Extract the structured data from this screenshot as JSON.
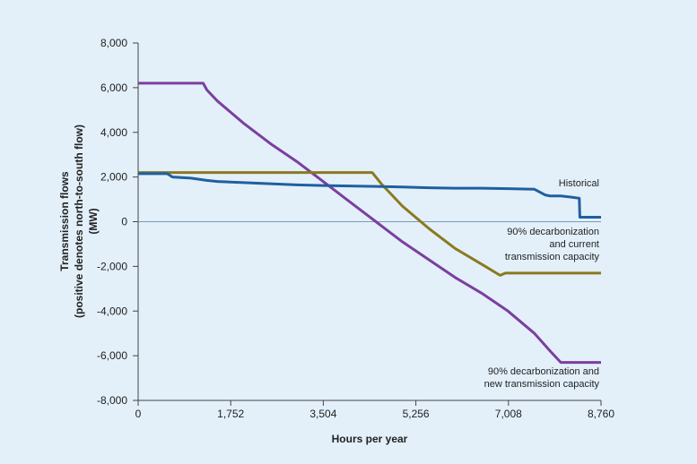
{
  "chart_data": {
    "type": "line",
    "xlabel": "Hours per year",
    "ylabel_lines": [
      "Transmission flows",
      "(positive denotes north-to-south flow)",
      "(MW)"
    ],
    "xlim": [
      0,
      8760
    ],
    "ylim": [
      -8000,
      8000
    ],
    "x_ticks": [
      0,
      1752,
      3504,
      5256,
      7008,
      8760
    ],
    "x_tick_labels": [
      "0",
      "1,752",
      "3,504",
      "5,256",
      "7,008",
      "8,760"
    ],
    "y_ticks": [
      8000,
      6000,
      4000,
      2000,
      0,
      -2000,
      -4000,
      -6000,
      -8000
    ],
    "y_tick_labels": [
      "8,000",
      "6,000",
      "4,000",
      "2,000",
      "0",
      "-2,000",
      "-4,000",
      "-6,000",
      "-8,000"
    ],
    "grid": false,
    "series": [
      {
        "key": "new",
        "color": "#7b3f9e",
        "annotation": [
          "90% decarbonization and",
          "new transmission capacity"
        ],
        "x": [
          0,
          1230,
          1300,
          1500,
          2000,
          2500,
          3000,
          3500,
          4000,
          4500,
          5000,
          5500,
          6000,
          6500,
          7000,
          7500,
          7800,
          8000,
          8100,
          8760
        ],
        "y": [
          6200,
          6200,
          5900,
          5400,
          4400,
          3500,
          2700,
          1800,
          900,
          0,
          -900,
          -1700,
          -2500,
          -3200,
          -4000,
          -5000,
          -5800,
          -6300,
          -6300,
          -6300
        ]
      },
      {
        "key": "current",
        "color": "#8a7a20",
        "annotation": [
          "90% decarbonization",
          "and current",
          "transmission capacity"
        ],
        "x": [
          0,
          4430,
          4600,
          5000,
          5500,
          6000,
          6500,
          6850,
          6950,
          8760
        ],
        "y": [
          2200,
          2200,
          1700,
          700,
          -300,
          -1200,
          -1900,
          -2400,
          -2300,
          -2300
        ]
      },
      {
        "key": "historical",
        "color": "#1f5fa0",
        "annotation": [
          "Historical"
        ],
        "x": [
          0,
          550,
          650,
          1000,
          1300,
          1500,
          2000,
          2500,
          3000,
          3500,
          4000,
          4500,
          5000,
          5500,
          6000,
          6500,
          7000,
          7500,
          7700,
          7800,
          8000,
          8200,
          8350,
          8360,
          8400,
          8760
        ],
        "y": [
          2150,
          2150,
          2000,
          1950,
          1850,
          1800,
          1750,
          1700,
          1650,
          1620,
          1600,
          1580,
          1550,
          1520,
          1500,
          1500,
          1480,
          1450,
          1200,
          1150,
          1150,
          1100,
          1050,
          200,
          200,
          200
        ]
      }
    ]
  }
}
